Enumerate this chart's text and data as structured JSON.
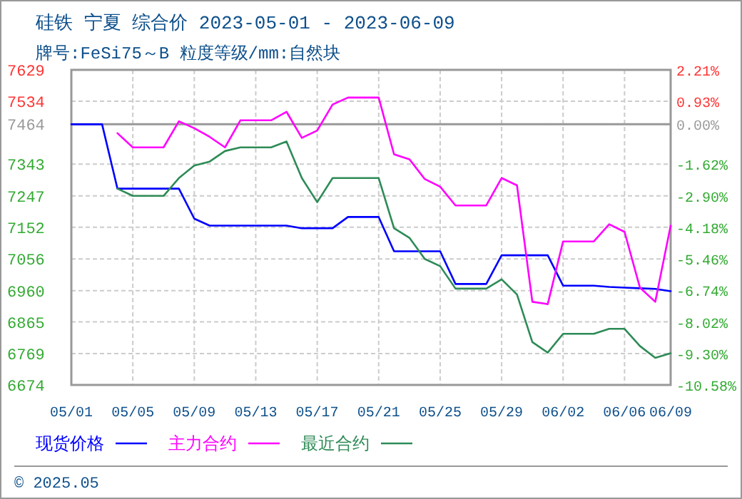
{
  "chart_data": {
    "type": "line",
    "title": "硅铁  宁夏  综合价  2023-05-01 - 2023-06-09",
    "subtitle": "牌号:FeSi75～B 粒度等级/mm:自然块",
    "xlim": [
      "--05-01",
      "--06-09"
    ],
    "xticks": [
      {
        "value": "--05-01",
        "label": "05/01"
      },
      {
        "value": "--05-05",
        "label": "05/05"
      },
      {
        "value": "--05-09",
        "label": "05/09"
      },
      {
        "value": "--05-13",
        "label": "05/13"
      },
      {
        "value": "--05-17",
        "label": "05/17"
      },
      {
        "value": "--05-21",
        "label": "05/21"
      },
      {
        "value": "--05-25",
        "label": "05/25"
      },
      {
        "value": "--05-29",
        "label": "05/29"
      },
      {
        "value": "--06-02",
        "label": "06/02"
      },
      {
        "value": "--06-06",
        "label": "06/06"
      },
      {
        "value": "--06-09",
        "label": "06/09"
      }
    ],
    "ylim": [
      6674,
      7629
    ],
    "yticks": [
      6674,
      6769,
      6865,
      6960,
      7056,
      7152,
      7247,
      7343,
      7464,
      7534,
      7629
    ],
    "y2lim": [
      -10.58,
      2.21
    ],
    "y2ticks": [
      {
        "value": -10.58,
        "label": "-10.58%"
      },
      {
        "value": -9.3,
        "label": "-9.30%"
      },
      {
        "value": -8.02,
        "label": "-8.02%"
      },
      {
        "value": -6.74,
        "label": "-6.74%"
      },
      {
        "value": -5.46,
        "label": "-5.46%"
      },
      {
        "value": -4.18,
        "label": "-4.18%"
      },
      {
        "value": -2.9,
        "label": "-2.90%"
      },
      {
        "value": -1.62,
        "label": "-1.62%"
      },
      {
        "value": 0,
        "label": "0.00%"
      },
      {
        "value": 0.93,
        "label": "0.93%"
      },
      {
        "value": 2.21,
        "label": "2.21%"
      }
    ],
    "ref_lines": [
      {
        "axis": "y",
        "value": 7464,
        "color": "#999999"
      }
    ],
    "grid": true,
    "legend": "bottom",
    "line_style": "solid",
    "marker": "none",
    "series": [
      {
        "name": "现货价格",
        "color": "#0000ff",
        "x": [
          "--05-01",
          "--05-02",
          "--05-03",
          "--05-04",
          "--05-05",
          "--05-06",
          "--05-07",
          "--05-08",
          "--05-09",
          "--05-10",
          "--05-11",
          "--05-12",
          "--05-13",
          "--05-14",
          "--05-15",
          "--05-16",
          "--05-17",
          "--05-18",
          "--05-19",
          "--05-20",
          "--05-21",
          "--05-22",
          "--05-23",
          "--05-24",
          "--05-25",
          "--05-26",
          "--05-27",
          "--05-28",
          "--05-29",
          "--05-30",
          "--05-31",
          "--06-01",
          "--06-02",
          "--06-03",
          "--06-04",
          "--06-05",
          "--06-06",
          "--06-07",
          "--06-08",
          "--06-09"
        ],
        "values": [
          7464,
          7464,
          7464,
          7269,
          7269,
          7269,
          7269,
          7269,
          7178,
          7157,
          7157,
          7157,
          7157,
          7157,
          7157,
          7149,
          7149,
          7149,
          7183,
          7183,
          7183,
          7079,
          7079,
          7079,
          7079,
          6980,
          6980,
          6980,
          7067,
          7067,
          7067,
          7067,
          6975,
          6975,
          6975,
          6971,
          6969,
          6967,
          6965,
          6958
        ]
      },
      {
        "name": "主力合约",
        "color": "#ff00ff",
        "x": [
          "--05-04",
          "--05-05",
          "--05-06",
          "--05-07",
          "--05-08",
          "--05-09",
          "--05-10",
          "--05-11",
          "--05-12",
          "--05-13",
          "--05-14",
          "--05-15",
          "--05-16",
          "--05-17",
          "--05-18",
          "--05-19",
          "--05-20",
          "--05-21",
          "--05-22",
          "--05-23",
          "--05-24",
          "--05-25",
          "--05-26",
          "--05-27",
          "--05-28",
          "--05-29",
          "--05-30",
          "--05-31",
          "--06-01",
          "--06-02",
          "--06-03",
          "--06-04",
          "--06-05",
          "--06-06",
          "--06-07",
          "--06-08",
          "--06-09"
        ],
        "values": [
          7437,
          7394,
          7394,
          7394,
          7473,
          7452,
          7426,
          7394,
          7476,
          7476,
          7476,
          7502,
          7423,
          7445,
          7524,
          7545,
          7545,
          7545,
          7373,
          7358,
          7298,
          7275,
          7218,
          7218,
          7218,
          7301,
          7279,
          6926,
          6919,
          7109,
          7109,
          7109,
          7161,
          7138,
          6969,
          6926,
          7157
        ]
      },
      {
        "name": "最近合约",
        "color": "#2e8b57",
        "x": [
          "--05-04",
          "--05-05",
          "--05-06",
          "--05-07",
          "--05-08",
          "--05-09",
          "--05-10",
          "--05-11",
          "--05-12",
          "--05-13",
          "--05-14",
          "--05-15",
          "--05-16",
          "--05-17",
          "--05-18",
          "--05-19",
          "--05-20",
          "--05-21",
          "--05-22",
          "--05-23",
          "--05-24",
          "--05-25",
          "--05-26",
          "--05-27",
          "--05-28",
          "--05-29",
          "--05-30",
          "--05-31",
          "--06-01",
          "--06-02",
          "--06-03",
          "--06-04",
          "--06-05",
          "--06-06",
          "--06-07",
          "--06-08",
          "--06-09"
        ],
        "values": [
          7269,
          7247,
          7247,
          7247,
          7301,
          7339,
          7351,
          7383,
          7394,
          7394,
          7394,
          7412,
          7301,
          7228,
          7301,
          7301,
          7301,
          7301,
          7149,
          7120,
          7056,
          7034,
          6966,
          6966,
          6966,
          6994,
          6948,
          6804,
          6772,
          6829,
          6829,
          6829,
          6844,
          6844,
          6792,
          6756,
          6770
        ]
      }
    ],
    "annotations": [
      "© 2025.05"
    ]
  }
}
